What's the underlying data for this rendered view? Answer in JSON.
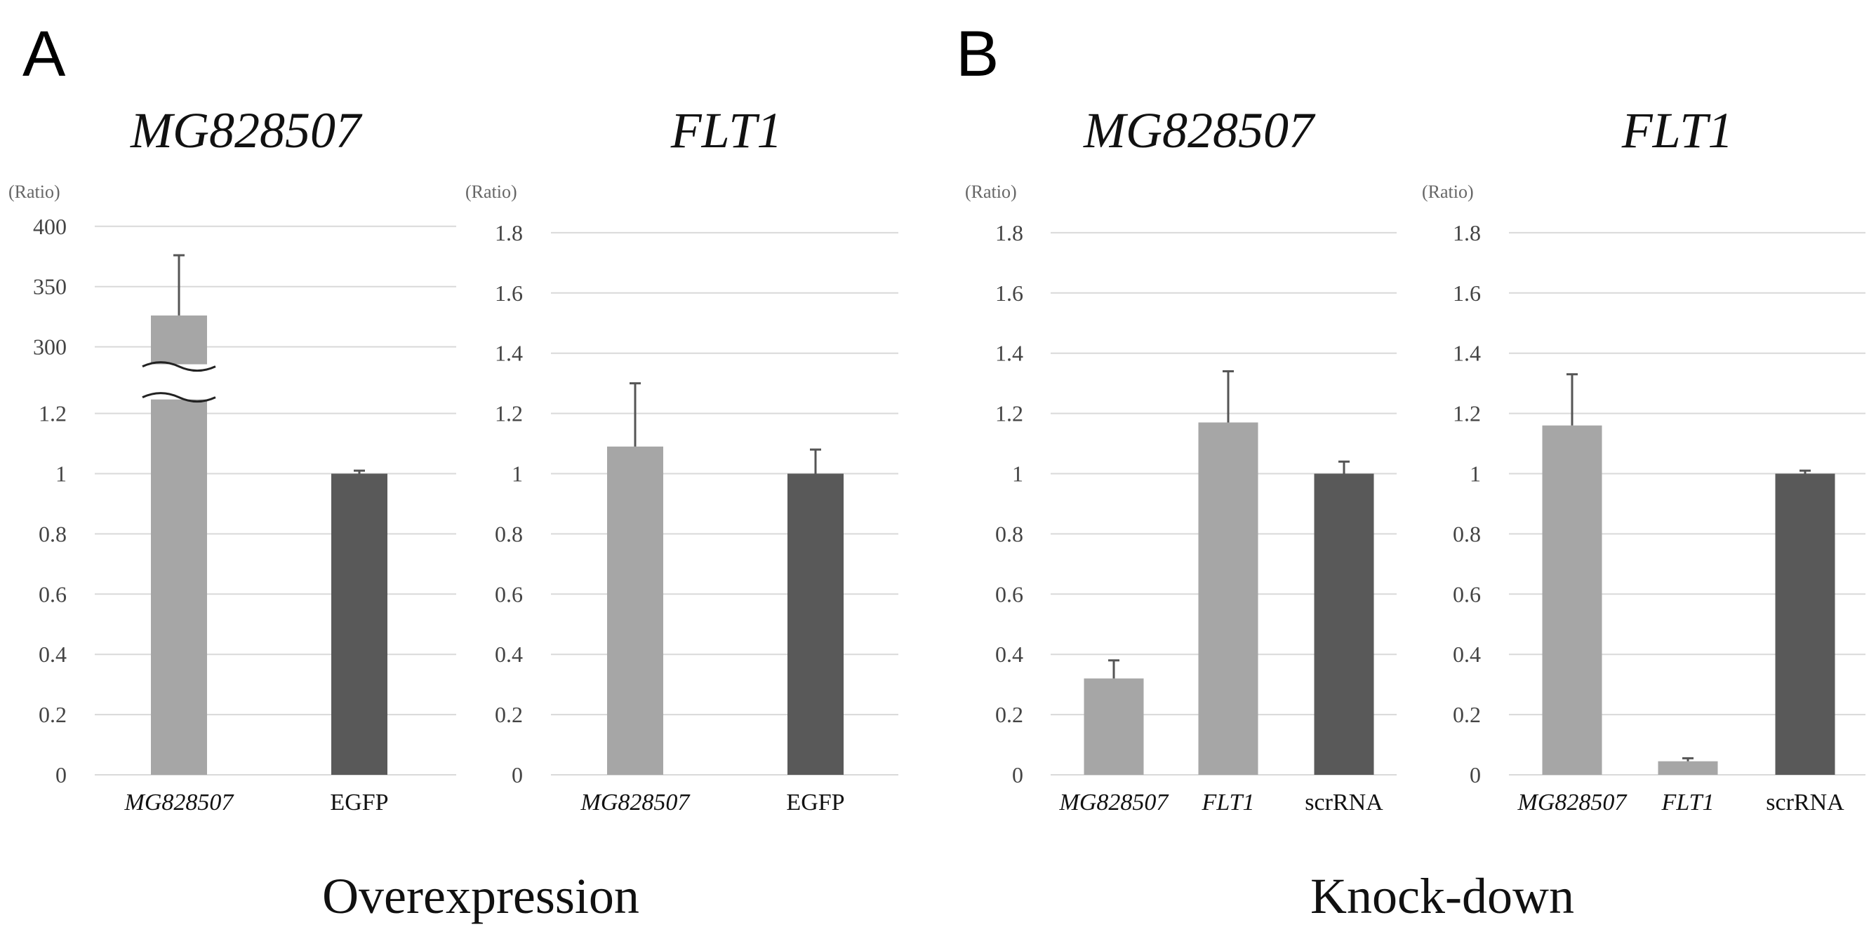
{
  "panels": [
    {
      "letter": "A",
      "section": "Overexpression"
    },
    {
      "letter": "B",
      "section": "Knock-down"
    }
  ],
  "colors": {
    "light_bar": "#a6a6a6",
    "dark_bar": "#595959",
    "grid": "#d9d9d9"
  },
  "chart_data": [
    {
      "type": "bar",
      "title": "MG828507",
      "ylabel": "(Ratio)",
      "axis_break": true,
      "lower_ticks": [
        "0",
        "0.2",
        "0.4",
        "0.6",
        "0.8",
        "1",
        "1.2"
      ],
      "upper_ticks": [
        "300",
        "350",
        "400"
      ],
      "categories": [
        "MG828507",
        "EGFP"
      ],
      "italic_categories": [
        true,
        false
      ],
      "values": [
        326,
        1.0
      ],
      "errors": [
        50,
        0.01
      ],
      "bar_colors": [
        "#a6a6a6",
        "#595959"
      ],
      "grid": true
    },
    {
      "type": "bar",
      "title": "FLT1",
      "ylabel": "(Ratio)",
      "ylim": [
        0,
        1.8
      ],
      "ticks": [
        "0",
        "0.2",
        "0.4",
        "0.6",
        "0.8",
        "1",
        "1.2",
        "1.4",
        "1.6",
        "1.8"
      ],
      "categories": [
        "MG828507",
        "EGFP"
      ],
      "italic_categories": [
        true,
        false
      ],
      "values": [
        1.09,
        1.0
      ],
      "errors": [
        0.21,
        0.08
      ],
      "bar_colors": [
        "#a6a6a6",
        "#595959"
      ],
      "grid": true
    },
    {
      "type": "bar",
      "title": "MG828507",
      "ylabel": "(Ratio)",
      "ylim": [
        0,
        1.8
      ],
      "ticks": [
        "0",
        "0.2",
        "0.4",
        "0.6",
        "0.8",
        "1",
        "1.2",
        "1.4",
        "1.6",
        "1.8"
      ],
      "categories": [
        "MG828507",
        "FLT1",
        "scrRNA"
      ],
      "italic_categories": [
        true,
        true,
        false
      ],
      "values": [
        0.32,
        1.17,
        1.0
      ],
      "errors": [
        0.06,
        0.17,
        0.04
      ],
      "bar_colors": [
        "#a6a6a6",
        "#a6a6a6",
        "#595959"
      ],
      "grid": true
    },
    {
      "type": "bar",
      "title": "FLT1",
      "ylabel": "(Ratio)",
      "ylim": [
        0,
        1.8
      ],
      "ticks": [
        "0",
        "0.2",
        "0.4",
        "0.6",
        "0.8",
        "1",
        "1.2",
        "1.4",
        "1.6",
        "1.8"
      ],
      "categories": [
        "MG828507",
        "FLT1",
        "scrRNA"
      ],
      "italic_categories": [
        true,
        true,
        false
      ],
      "values": [
        1.16,
        0.045,
        1.0
      ],
      "errors": [
        0.17,
        0.01,
        0.01
      ],
      "bar_colors": [
        "#a6a6a6",
        "#a6a6a6",
        "#595959"
      ],
      "grid": true
    }
  ]
}
